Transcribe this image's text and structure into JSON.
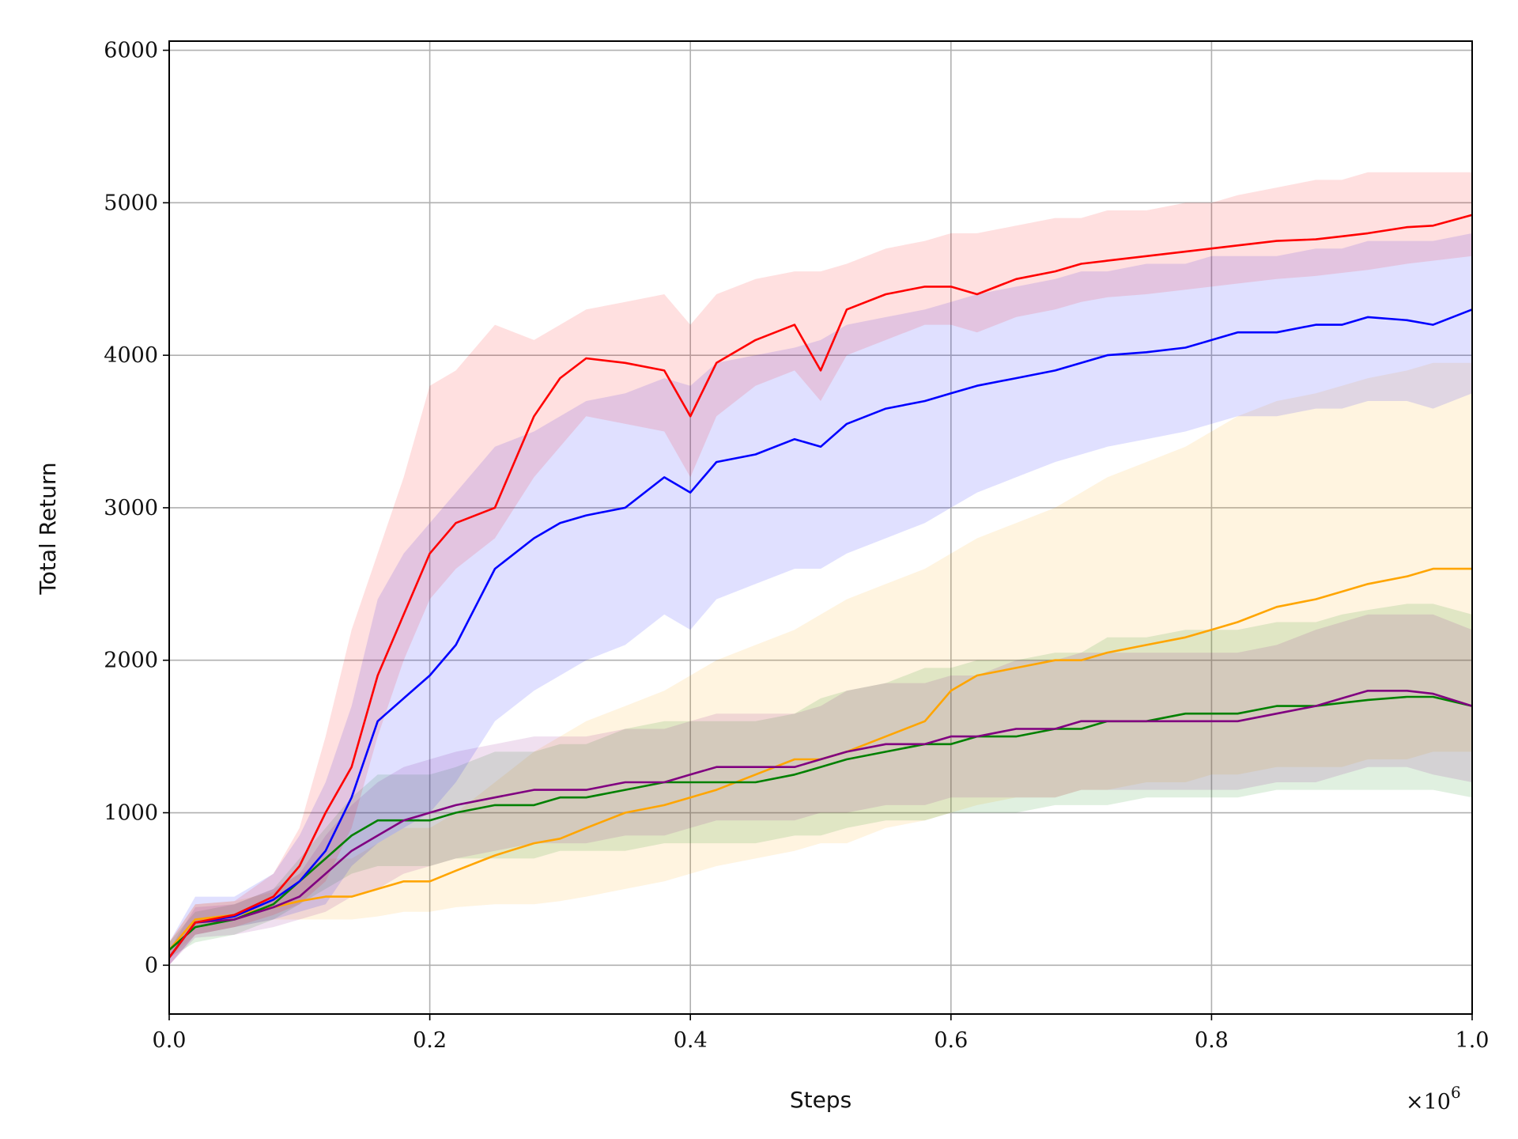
{
  "chart_data": {
    "type": "line",
    "title": "",
    "xlabel": "Steps",
    "ylabel": "Total Return",
    "x_multiplier_label": "×10",
    "x_multiplier_exponent": "6",
    "xlim": [
      0.0,
      1.0
    ],
    "ylim": [
      -320,
      6060
    ],
    "xticks": [
      0.0,
      0.2,
      0.4,
      0.6,
      0.8,
      1.0
    ],
    "xtick_labels": [
      "0.0",
      "0.2",
      "0.4",
      "0.6",
      "0.8",
      "1.0"
    ],
    "yticks": [
      0,
      1000,
      2000,
      3000,
      4000,
      5000,
      6000
    ],
    "ytick_labels": [
      "0",
      "1000",
      "2000",
      "3000",
      "4000",
      "5000",
      "6000"
    ],
    "grid": true,
    "legend": "none",
    "x": [
      0.0,
      0.02,
      0.05,
      0.08,
      0.1,
      0.12,
      0.14,
      0.16,
      0.18,
      0.2,
      0.22,
      0.25,
      0.28,
      0.3,
      0.32,
      0.35,
      0.38,
      0.4,
      0.42,
      0.45,
      0.48,
      0.5,
      0.52,
      0.55,
      0.58,
      0.6,
      0.62,
      0.65,
      0.68,
      0.7,
      0.72,
      0.75,
      0.78,
      0.8,
      0.82,
      0.85,
      0.88,
      0.9,
      0.92,
      0.95,
      0.97,
      1.0
    ],
    "series": [
      {
        "color": "#ff0000",
        "values": [
          50,
          280,
          330,
          450,
          650,
          1000,
          1300,
          1900,
          2300,
          2700,
          2900,
          3000,
          3600,
          3850,
          3980,
          3950,
          3900,
          3600,
          3950,
          4100,
          4200,
          3900,
          4300,
          4400,
          4450,
          4450,
          4400,
          4500,
          4550,
          4600,
          4620,
          4650,
          4680,
          4700,
          4720,
          4750,
          4760,
          4780,
          4800,
          4840,
          4850,
          4920
        ],
        "lower": [
          0,
          200,
          250,
          330,
          400,
          550,
          900,
          1500,
          2000,
          2400,
          2600,
          2800,
          3200,
          3400,
          3600,
          3550,
          3500,
          3200,
          3600,
          3800,
          3900,
          3700,
          4000,
          4100,
          4200,
          4200,
          4150,
          4250,
          4300,
          4350,
          4380,
          4400,
          4430,
          4450,
          4470,
          4500,
          4520,
          4540,
          4560,
          4600,
          4620,
          4650
        ],
        "upper": [
          150,
          400,
          420,
          600,
          900,
          1500,
          2200,
          2700,
          3200,
          3800,
          3900,
          4200,
          4100,
          4200,
          4300,
          4350,
          4400,
          4200,
          4400,
          4500,
          4550,
          4550,
          4600,
          4700,
          4750,
          4800,
          4800,
          4850,
          4900,
          4900,
          4950,
          4950,
          5000,
          5000,
          5050,
          5100,
          5150,
          5150,
          5200,
          5200,
          5200,
          5200
        ]
      },
      {
        "color": "#0000ff",
        "values": [
          50,
          280,
          320,
          430,
          550,
          750,
          1100,
          1600,
          1750,
          1900,
          2100,
          2600,
          2800,
          2900,
          2950,
          3000,
          3200,
          3100,
          3300,
          3350,
          3450,
          3400,
          3550,
          3650,
          3700,
          3750,
          3800,
          3850,
          3900,
          3950,
          4000,
          4020,
          4050,
          4100,
          4150,
          4150,
          4200,
          4200,
          4250,
          4230,
          4200,
          4300
        ],
        "lower": [
          0,
          200,
          250,
          300,
          350,
          400,
          650,
          800,
          900,
          1000,
          1200,
          1600,
          1800,
          1900,
          2000,
          2100,
          2300,
          2200,
          2400,
          2500,
          2600,
          2600,
          2700,
          2800,
          2900,
          3000,
          3100,
          3200,
          3300,
          3350,
          3400,
          3450,
          3500,
          3550,
          3600,
          3600,
          3650,
          3650,
          3700,
          3700,
          3650,
          3750
        ],
        "upper": [
          150,
          450,
          450,
          600,
          850,
          1200,
          1700,
          2400,
          2700,
          2900,
          3100,
          3400,
          3500,
          3600,
          3700,
          3750,
          3850,
          3800,
          3950,
          4000,
          4050,
          4100,
          4200,
          4250,
          4300,
          4350,
          4400,
          4450,
          4500,
          4550,
          4550,
          4600,
          4600,
          4650,
          4650,
          4650,
          4700,
          4700,
          4750,
          4750,
          4750,
          4800
        ]
      },
      {
        "color": "#ffa500",
        "values": [
          100,
          300,
          330,
          380,
          420,
          450,
          450,
          500,
          550,
          550,
          620,
          720,
          800,
          830,
          900,
          1000,
          1050,
          1100,
          1150,
          1250,
          1350,
          1350,
          1400,
          1500,
          1600,
          1800,
          1900,
          1950,
          2000,
          2000,
          2050,
          2100,
          2150,
          2200,
          2250,
          2350,
          2400,
          2450,
          2500,
          2550,
          2600,
          2600
        ],
        "lower": [
          50,
          200,
          250,
          300,
          300,
          300,
          300,
          320,
          350,
          350,
          380,
          400,
          400,
          420,
          450,
          500,
          550,
          600,
          650,
          700,
          750,
          800,
          800,
          900,
          950,
          1000,
          1050,
          1100,
          1100,
          1150,
          1150,
          1200,
          1200,
          1250,
          1250,
          1300,
          1300,
          1300,
          1350,
          1350,
          1400,
          1400
        ],
        "upper": [
          150,
          400,
          420,
          480,
          600,
          700,
          700,
          800,
          900,
          900,
          1000,
          1200,
          1400,
          1500,
          1600,
          1700,
          1800,
          1900,
          2000,
          2100,
          2200,
          2300,
          2400,
          2500,
          2600,
          2700,
          2800,
          2900,
          3000,
          3100,
          3200,
          3300,
          3400,
          3500,
          3600,
          3700,
          3750,
          3800,
          3850,
          3900,
          3950,
          3950
        ]
      },
      {
        "color": "#008000",
        "values": [
          100,
          250,
          300,
          400,
          550,
          700,
          850,
          950,
          950,
          950,
          1000,
          1050,
          1050,
          1100,
          1100,
          1150,
          1200,
          1200,
          1200,
          1200,
          1250,
          1300,
          1350,
          1400,
          1450,
          1450,
          1500,
          1500,
          1550,
          1550,
          1600,
          1600,
          1650,
          1650,
          1650,
          1700,
          1700,
          1720,
          1740,
          1760,
          1760,
          1700
        ],
        "lower": [
          50,
          150,
          200,
          300,
          400,
          500,
          600,
          650,
          650,
          650,
          700,
          700,
          700,
          750,
          750,
          750,
          800,
          800,
          800,
          800,
          850,
          850,
          900,
          950,
          950,
          1000,
          1000,
          1000,
          1050,
          1050,
          1050,
          1100,
          1100,
          1100,
          1100,
          1150,
          1150,
          1150,
          1150,
          1150,
          1150,
          1100
        ],
        "upper": [
          150,
          350,
          400,
          500,
          700,
          900,
          1100,
          1250,
          1250,
          1250,
          1300,
          1400,
          1400,
          1450,
          1450,
          1550,
          1600,
          1600,
          1600,
          1600,
          1650,
          1750,
          1800,
          1850,
          1950,
          1950,
          2000,
          2000,
          2050,
          2050,
          2150,
          2150,
          2200,
          2200,
          2200,
          2250,
          2250,
          2300,
          2330,
          2370,
          2370,
          2300
        ]
      },
      {
        "color": "#800080",
        "values": [
          50,
          280,
          300,
          380,
          450,
          600,
          750,
          850,
          950,
          1000,
          1050,
          1100,
          1150,
          1150,
          1150,
          1200,
          1200,
          1250,
          1300,
          1300,
          1300,
          1350,
          1400,
          1450,
          1450,
          1500,
          1500,
          1550,
          1550,
          1600,
          1600,
          1600,
          1600,
          1600,
          1600,
          1650,
          1700,
          1750,
          1800,
          1800,
          1780,
          1700
        ],
        "lower": [
          0,
          180,
          200,
          250,
          300,
          350,
          450,
          500,
          600,
          650,
          700,
          750,
          800,
          800,
          800,
          850,
          850,
          900,
          950,
          950,
          950,
          1000,
          1000,
          1050,
          1050,
          1100,
          1100,
          1100,
          1100,
          1150,
          1150,
          1150,
          1150,
          1150,
          1150,
          1200,
          1200,
          1250,
          1300,
          1300,
          1250,
          1200
        ],
        "upper": [
          100,
          380,
          400,
          500,
          600,
          850,
          1050,
          1200,
          1300,
          1350,
          1400,
          1450,
          1500,
          1500,
          1500,
          1550,
          1550,
          1600,
          1650,
          1650,
          1650,
          1700,
          1800,
          1850,
          1850,
          1900,
          1900,
          2000,
          2000,
          2050,
          2050,
          2050,
          2050,
          2050,
          2050,
          2100,
          2200,
          2250,
          2300,
          2300,
          2300,
          2200
        ]
      }
    ]
  }
}
